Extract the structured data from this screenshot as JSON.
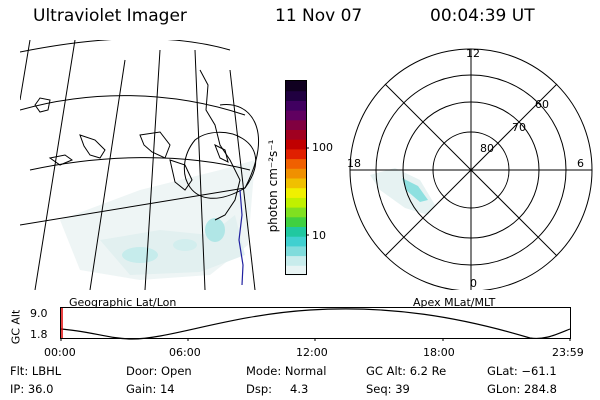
{
  "header": {
    "title": "Ultraviolet Imager",
    "date": "11 Nov 07",
    "time": "00:04:39 UT"
  },
  "colorbar": {
    "unit_label": "photon cm⁻²s⁻¹",
    "ticks": [
      "100",
      "10"
    ],
    "colors": [
      "#e8f4f4",
      "#c8ecec",
      "#80dcdc",
      "#40d0d0",
      "#20c8a0",
      "#40d040",
      "#80e020",
      "#c0f000",
      "#f0f000",
      "#f0c000",
      "#f09000",
      "#f06000",
      "#e02000",
      "#c00000",
      "#a00020",
      "#800040",
      "#600060",
      "#400060",
      "#200040",
      "#100020"
    ]
  },
  "geo_map": {
    "label": "Geographic Lat/Lon"
  },
  "polar_plot": {
    "label": "Apex MLat/MLT",
    "mlt_labels": {
      "top": "12",
      "bottom": "0",
      "left": "18",
      "right": "6"
    },
    "mlat_labels": [
      "60",
      "70",
      "80"
    ]
  },
  "altitude_plot": {
    "axis_title": "GC Alt",
    "y_ticks": [
      "9.0",
      "1.8"
    ],
    "x_ticks": [
      "00:00",
      "06:00",
      "12:00",
      "18:00",
      "23:59"
    ]
  },
  "status": {
    "row1": {
      "flt": "Flt: LBHL",
      "door": "Door: Open",
      "mode": "Mode: Normal",
      "gc_alt": "GC Alt: 6.2 Re",
      "glat": "GLat: −61.1"
    },
    "row2": {
      "ip": "IP: 36.0",
      "gain": "Gain: 14",
      "dsp_label": "Dsp:",
      "dsp_value": "4.3",
      "seq": "Seq: 39",
      "glon": "GLon: 284.8"
    }
  }
}
